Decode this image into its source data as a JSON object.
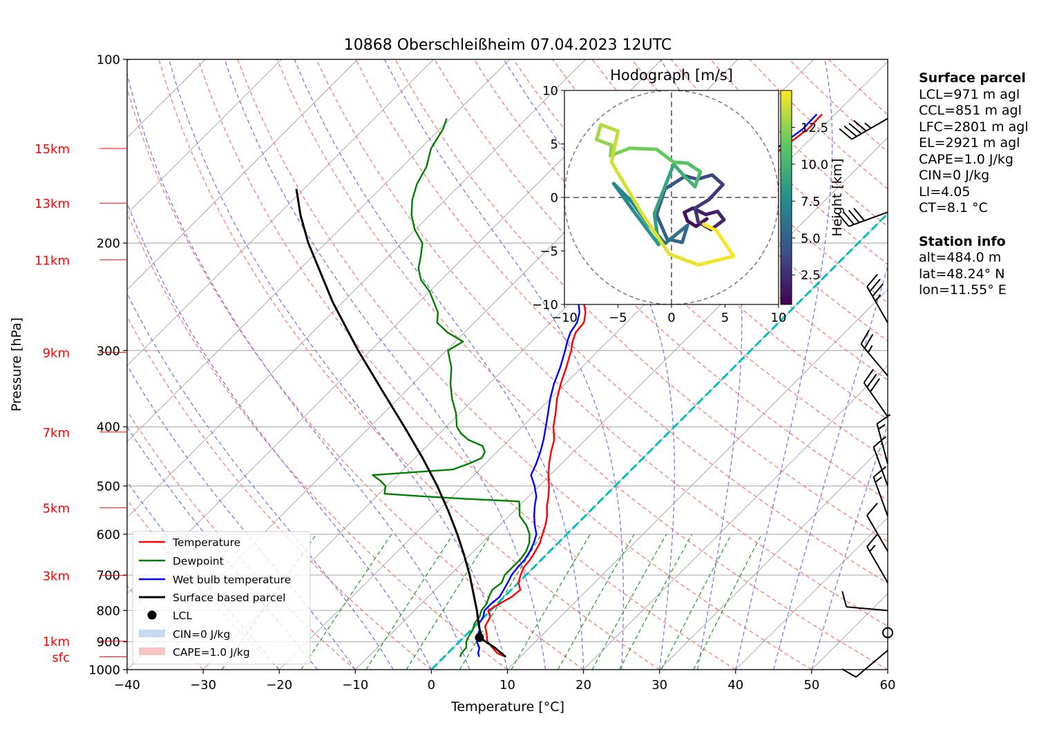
{
  "title": "10868 Oberschleißheim 07.04.2023 12UTC",
  "chart_data": {
    "type": "skew-t",
    "title": "10868 Oberschleißheim 07.04.2023 12UTC",
    "xlabel": "Temperature [°C]",
    "ylabel": "Pressure [hPa]",
    "xlim": [
      -40,
      60
    ],
    "ylim_hPa": [
      1000,
      100
    ],
    "x_ticks": [
      "−40",
      "−30",
      "−20",
      "−10",
      "0",
      "10",
      "20",
      "30",
      "40",
      "50",
      "60"
    ],
    "x_tick_values": [
      -40,
      -30,
      -20,
      -10,
      0,
      10,
      20,
      30,
      40,
      50,
      60
    ],
    "y_ticks": [
      "100",
      "200",
      "300",
      "400",
      "500",
      "600",
      "700",
      "800",
      "900",
      "1000"
    ],
    "y_tick_values": [
      100,
      200,
      300,
      400,
      500,
      600,
      700,
      800,
      900,
      1000
    ],
    "height_labels": [
      {
        "label": "15km",
        "p": 140
      },
      {
        "label": "13km",
        "p": 172
      },
      {
        "label": "11km",
        "p": 213
      },
      {
        "label": "9km",
        "p": 302
      },
      {
        "label": "7km",
        "p": 408
      },
      {
        "label": "5km",
        "p": 543
      },
      {
        "label": "3km",
        "p": 701
      },
      {
        "label": "1km",
        "p": 898
      },
      {
        "label": "sfc",
        "p": 953
      }
    ],
    "legend": {
      "position": "lower-left",
      "entries": [
        "Temperature",
        "Dewpoint",
        "Wet bulb temperature",
        "Surface based parcel",
        "LCL",
        "CIN=0 J/kg",
        "CAPE=1.0 J/kg"
      ]
    },
    "colors": {
      "temperature": "#ff0000",
      "dewpoint": "#008000",
      "wetbulb": "#0000ff",
      "parcel": "#000000",
      "isotherm_zero": "#00bfbf",
      "dry_adiabat": "#ff7777",
      "moist_adiabat": "#7777ee",
      "mixing_ratio": "#2ca02c",
      "height_labels": "#ff0000"
    },
    "series": [
      {
        "name": "Temperature",
        "points": [
          [
            953,
            8.1
          ],
          [
            940,
            6.5
          ],
          [
            920,
            5.1
          ],
          [
            900,
            3.7
          ],
          [
            870,
            2.4
          ],
          [
            850,
            1.4
          ],
          [
            820,
            0.8
          ],
          [
            800,
            -0.3
          ],
          [
            780,
            0.3
          ],
          [
            760,
            1.0
          ],
          [
            740,
            1.2
          ],
          [
            720,
            0.0
          ],
          [
            700,
            -0.7
          ],
          [
            680,
            -1.3
          ],
          [
            660,
            -1.5
          ],
          [
            640,
            -1.9
          ],
          [
            620,
            -2.4
          ],
          [
            600,
            -3.2
          ],
          [
            580,
            -4.0
          ],
          [
            560,
            -5.0
          ],
          [
            540,
            -6.3
          ],
          [
            520,
            -7.4
          ],
          [
            500,
            -8.7
          ],
          [
            480,
            -10.2
          ],
          [
            460,
            -11.6
          ],
          [
            440,
            -12.9
          ],
          [
            420,
            -14.1
          ],
          [
            400,
            -15.9
          ],
          [
            380,
            -17.4
          ],
          [
            360,
            -19.1
          ],
          [
            340,
            -20.6
          ],
          [
            320,
            -22.0
          ],
          [
            300,
            -23.6
          ],
          [
            290,
            -24.6
          ],
          [
            280,
            -25.4
          ],
          [
            270,
            -25.6
          ],
          [
            260,
            -26.7
          ],
          [
            250,
            -28.3
          ],
          [
            245,
            -28.5
          ],
          [
            240,
            -27.4
          ],
          [
            230,
            -27.1
          ],
          [
            220,
            -25.8
          ],
          [
            210,
            -24.9
          ],
          [
            200,
            -24.4
          ],
          [
            190,
            -23.7
          ],
          [
            180,
            -22.9
          ],
          [
            170,
            -23.1
          ],
          [
            160,
            -22.7
          ],
          [
            150,
            -22.9
          ],
          [
            140,
            -22.5
          ],
          [
            130,
            -21.6
          ],
          [
            123,
            -21.7
          ]
        ]
      },
      {
        "name": "Dewpoint",
        "points": [
          [
            953,
            2.1
          ],
          [
            940,
            1.8
          ],
          [
            920,
            1.7
          ],
          [
            900,
            0.9
          ],
          [
            880,
            0.5
          ],
          [
            860,
            0.2
          ],
          [
            840,
            -0.4
          ],
          [
            820,
            -0.6
          ],
          [
            800,
            -1.2
          ],
          [
            780,
            -1.4
          ],
          [
            760,
            -2.0
          ],
          [
            740,
            -2.5
          ],
          [
            720,
            -2.2
          ],
          [
            700,
            -2.8
          ],
          [
            680,
            -2.8
          ],
          [
            660,
            -2.8
          ],
          [
            640,
            -3.1
          ],
          [
            620,
            -3.8
          ],
          [
            600,
            -4.9
          ],
          [
            580,
            -6.5
          ],
          [
            560,
            -8.6
          ],
          [
            540,
            -9.9
          ],
          [
            530,
            -10.6
          ],
          [
            525,
            -18.0
          ],
          [
            520,
            -24.0
          ],
          [
            515,
            -29.3
          ],
          [
            510,
            -29.6
          ],
          [
            500,
            -30.2
          ],
          [
            490,
            -31.6
          ],
          [
            480,
            -33.3
          ],
          [
            470,
            -23.5
          ],
          [
            460,
            -22.2
          ],
          [
            450,
            -21.2
          ],
          [
            440,
            -21.6
          ],
          [
            430,
            -22.7
          ],
          [
            420,
            -25.4
          ],
          [
            410,
            -27.2
          ],
          [
            400,
            -28.6
          ],
          [
            380,
            -30.5
          ],
          [
            360,
            -32.9
          ],
          [
            340,
            -35.1
          ],
          [
            320,
            -37.1
          ],
          [
            300,
            -39.8
          ],
          [
            290,
            -39.0
          ],
          [
            280,
            -42.3
          ],
          [
            270,
            -44.9
          ],
          [
            260,
            -46.1
          ],
          [
            250,
            -48.0
          ],
          [
            240,
            -50.0
          ],
          [
            230,
            -52.6
          ],
          [
            220,
            -54.5
          ],
          [
            210,
            -55.8
          ],
          [
            200,
            -57.3
          ],
          [
            190,
            -60.1
          ],
          [
            180,
            -62.4
          ],
          [
            170,
            -64.3
          ],
          [
            160,
            -65.8
          ],
          [
            150,
            -66.8
          ],
          [
            140,
            -68.6
          ],
          [
            130,
            -69.6
          ],
          [
            125,
            -70.5
          ]
        ]
      },
      {
        "name": "Wet bulb temperature",
        "points": [
          [
            953,
            4.6
          ],
          [
            940,
            4.0
          ],
          [
            920,
            3.4
          ],
          [
            900,
            2.3
          ],
          [
            880,
            1.6
          ],
          [
            860,
            1.1
          ],
          [
            840,
            0.2
          ],
          [
            820,
            -0.1
          ],
          [
            800,
            -0.8
          ],
          [
            780,
            -0.8
          ],
          [
            760,
            -0.6
          ],
          [
            740,
            -1.0
          ],
          [
            720,
            -1.4
          ],
          [
            700,
            -1.9
          ],
          [
            680,
            -2.1
          ],
          [
            660,
            -2.2
          ],
          [
            640,
            -2.6
          ],
          [
            620,
            -3.2
          ],
          [
            600,
            -4.0
          ],
          [
            580,
            -5.4
          ],
          [
            560,
            -6.7
          ],
          [
            540,
            -7.9
          ],
          [
            520,
            -9.0
          ],
          [
            500,
            -10.6
          ],
          [
            480,
            -12.5
          ],
          [
            460,
            -13.3
          ],
          [
            440,
            -14.3
          ],
          [
            420,
            -15.5
          ],
          [
            400,
            -16.9
          ],
          [
            380,
            -18.4
          ],
          [
            360,
            -20.0
          ],
          [
            340,
            -21.5
          ],
          [
            320,
            -22.8
          ],
          [
            300,
            -24.4
          ],
          [
            290,
            -25.3
          ],
          [
            280,
            -26.1
          ],
          [
            270,
            -26.5
          ],
          [
            260,
            -27.5
          ],
          [
            250,
            -29.0
          ],
          [
            245,
            -29.0
          ],
          [
            240,
            -28.1
          ],
          [
            230,
            -27.8
          ],
          [
            220,
            -26.5
          ],
          [
            210,
            -25.6
          ],
          [
            200,
            -25.1
          ],
          [
            190,
            -24.4
          ],
          [
            180,
            -23.6
          ],
          [
            170,
            -23.8
          ],
          [
            160,
            -23.4
          ],
          [
            150,
            -23.6
          ],
          [
            140,
            -23.2
          ],
          [
            130,
            -22.3
          ],
          [
            123,
            -22.4
          ]
        ]
      },
      {
        "name": "Surface based parcel",
        "points": [
          [
            953,
            8.1
          ],
          [
            920,
            5.4
          ],
          [
            886,
            2.1
          ],
          [
            870,
            1.6
          ],
          [
            850,
            0.6
          ],
          [
            800,
            -1.8
          ],
          [
            750,
            -4.5
          ],
          [
            700,
            -7.4
          ],
          [
            650,
            -10.7
          ],
          [
            600,
            -14.4
          ],
          [
            550,
            -18.6
          ],
          [
            500,
            -23.4
          ],
          [
            450,
            -29.0
          ],
          [
            400,
            -35.5
          ],
          [
            350,
            -43.0
          ],
          [
            300,
            -51.6
          ],
          [
            250,
            -61.3
          ],
          [
            200,
            -72.3
          ],
          [
            180,
            -77.0
          ],
          [
            163,
            -81.0
          ]
        ]
      }
    ],
    "lcl": {
      "p": 886,
      "t": 2.1
    },
    "hodograph": {
      "title": "Hodograph [m/s]",
      "xlim": [
        -10,
        10
      ],
      "ylim": [
        -10,
        10
      ],
      "ticks": [
        "−10",
        "−5",
        "0",
        "5",
        "10"
      ],
      "tick_values": [
        -10,
        -5,
        0,
        5,
        10
      ],
      "colorbar_label": "Height [km]",
      "colorbar_ticks": [
        "2.5",
        "5.0",
        "7.5",
        "10.0",
        "12.5"
      ],
      "colorbar_values": [
        2.5,
        5.0,
        7.5,
        10.0,
        12.5
      ],
      "colorbar_range": [
        0.5,
        15.0
      ],
      "points": [
        [
          3.3,
          -2.0,
          0.5
        ],
        [
          2.3,
          -2.7,
          0.8
        ],
        [
          1.5,
          -2.2,
          1.0
        ],
        [
          1.2,
          -1.4,
          1.3
        ],
        [
          2.0,
          -1.0,
          1.5
        ],
        [
          3.2,
          -1.6,
          1.8
        ],
        [
          4.3,
          -1.3,
          2.0
        ],
        [
          4.9,
          -2.1,
          2.2
        ],
        [
          3.7,
          -3.0,
          2.4
        ],
        [
          2.5,
          -2.3,
          2.6
        ],
        [
          2.2,
          -1.0,
          2.8
        ],
        [
          3.5,
          -0.2,
          3.0
        ],
        [
          4.8,
          1.2,
          3.3
        ],
        [
          3.8,
          2.1,
          3.6
        ],
        [
          2.4,
          1.7,
          3.9
        ],
        [
          1.3,
          2.0,
          4.2
        ],
        [
          -0.6,
          0.8,
          4.5
        ],
        [
          -1.4,
          -1.6,
          4.8
        ],
        [
          -0.4,
          -3.9,
          5.1
        ],
        [
          1.0,
          -4.2,
          5.4
        ],
        [
          1.5,
          -2.6,
          5.7
        ],
        [
          -0.6,
          -4.3,
          6.0
        ],
        [
          -2.2,
          -2.5,
          6.4
        ],
        [
          -3.7,
          -0.4,
          6.8
        ],
        [
          -5.4,
          1.3,
          7.2
        ],
        [
          -3.6,
          -1.2,
          7.6
        ],
        [
          -2.1,
          -3.2,
          8.0
        ],
        [
          -1.2,
          -4.4,
          8.4
        ],
        [
          -1.6,
          -1.5,
          8.8
        ],
        [
          0.2,
          3.1,
          9.2
        ],
        [
          1.1,
          2.1,
          9.6
        ],
        [
          2.2,
          1.0,
          10.0
        ],
        [
          2.7,
          2.4,
          10.4
        ],
        [
          1.5,
          3.2,
          10.8
        ],
        [
          0.2,
          3.3,
          11.2
        ],
        [
          -1.4,
          4.5,
          11.6
        ],
        [
          -3.9,
          4.6,
          11.9
        ],
        [
          -5.7,
          3.9,
          12.2
        ],
        [
          -5.6,
          4.9,
          12.5
        ],
        [
          -7.0,
          5.4,
          12.8
        ],
        [
          -6.6,
          6.8,
          13.2
        ],
        [
          -5.0,
          6.2,
          13.6
        ],
        [
          -5.6,
          3.3,
          14.0
        ],
        [
          -2.7,
          -1.6,
          14.2
        ],
        [
          -0.2,
          -5.3,
          14.4
        ],
        [
          2.5,
          -6.3,
          14.6
        ],
        [
          5.8,
          -5.5,
          14.8
        ],
        [
          4.2,
          -3.1,
          15.0
        ],
        [
          3.0,
          -2.5,
          15.0
        ]
      ]
    },
    "wind_barbs": [
      {
        "p": 125,
        "speed_kt": 45,
        "dir": 240
      },
      {
        "p": 178,
        "speed_kt": 40,
        "dir": 250
      },
      {
        "p": 270,
        "speed_kt": 35,
        "dir": 330
      },
      {
        "p": 330,
        "speed_kt": 25,
        "dir": 320
      },
      {
        "p": 385,
        "speed_kt": 30,
        "dir": 325
      },
      {
        "p": 460,
        "speed_kt": 15,
        "dir": 345
      },
      {
        "p": 500,
        "speed_kt": 10,
        "dir": 340
      },
      {
        "p": 560,
        "speed_kt": 15,
        "dir": 340
      },
      {
        "p": 640,
        "speed_kt": 10,
        "dir": 330
      },
      {
        "p": 720,
        "speed_kt": 15,
        "dir": 330
      },
      {
        "p": 800,
        "speed_kt": 10,
        "dir": 275
      },
      {
        "p": 870,
        "speed_kt": 0,
        "dir": 0
      },
      {
        "p": 930,
        "speed_kt": 10,
        "dir": 230
      }
    ]
  },
  "side_panel": {
    "surface_heading": "Surface parcel",
    "surface_lines": [
      "LCL=971 m agl",
      "CCL=851 m agl",
      "LFC=2801 m agl",
      "EL=2921 m agl",
      "CAPE=1.0 J/kg",
      "CIN=0 J/kg",
      "LI=4.05",
      "CT=8.1 °C"
    ],
    "station_heading": "Station info",
    "station_lines": [
      "alt=484.0 m",
      "lat=48.24° N",
      "lon=11.55° E"
    ]
  }
}
